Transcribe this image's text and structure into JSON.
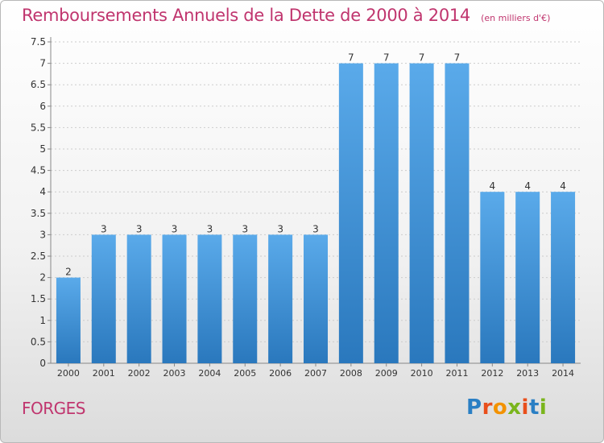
{
  "header": {
    "title": "Remboursements Annuels de la Dette de 2000 à 2014",
    "unit": "(en milliers d'€)"
  },
  "footer": {
    "place": "FORGES",
    "brand_letters": [
      "P",
      "r",
      "o",
      "x",
      "i",
      "t",
      "i"
    ],
    "brand_colors": [
      "#2a7fc4",
      "#e94e1b",
      "#f39200",
      "#7ab51d",
      "#e94e1b",
      "#2a7fc4",
      "#7ab51d"
    ]
  },
  "colors": {
    "bar_top": "#5aaaea",
    "bar_bottom": "#2a78bd",
    "axis": "#888888",
    "grid": "#cccccc",
    "text": "#333333",
    "accent": "#c0356e"
  },
  "chart_data": {
    "type": "bar",
    "categories": [
      "2000",
      "2001",
      "2002",
      "2003",
      "2004",
      "2005",
      "2006",
      "2007",
      "2008",
      "2009",
      "2010",
      "2011",
      "2012",
      "2013",
      "2014"
    ],
    "values": [
      2,
      3,
      3,
      3,
      3,
      3,
      3,
      3,
      7,
      7,
      7,
      7,
      4,
      4,
      4
    ],
    "ylim": [
      0,
      7.5
    ],
    "yticks": [
      "0",
      "0.5",
      "1",
      "1.5",
      "2",
      "2.5",
      "3",
      "3.5",
      "4",
      "4.5",
      "5",
      "5.5",
      "6",
      "6.5",
      "7",
      "7.5"
    ],
    "grid": true,
    "xlabel": "",
    "ylabel": ""
  }
}
